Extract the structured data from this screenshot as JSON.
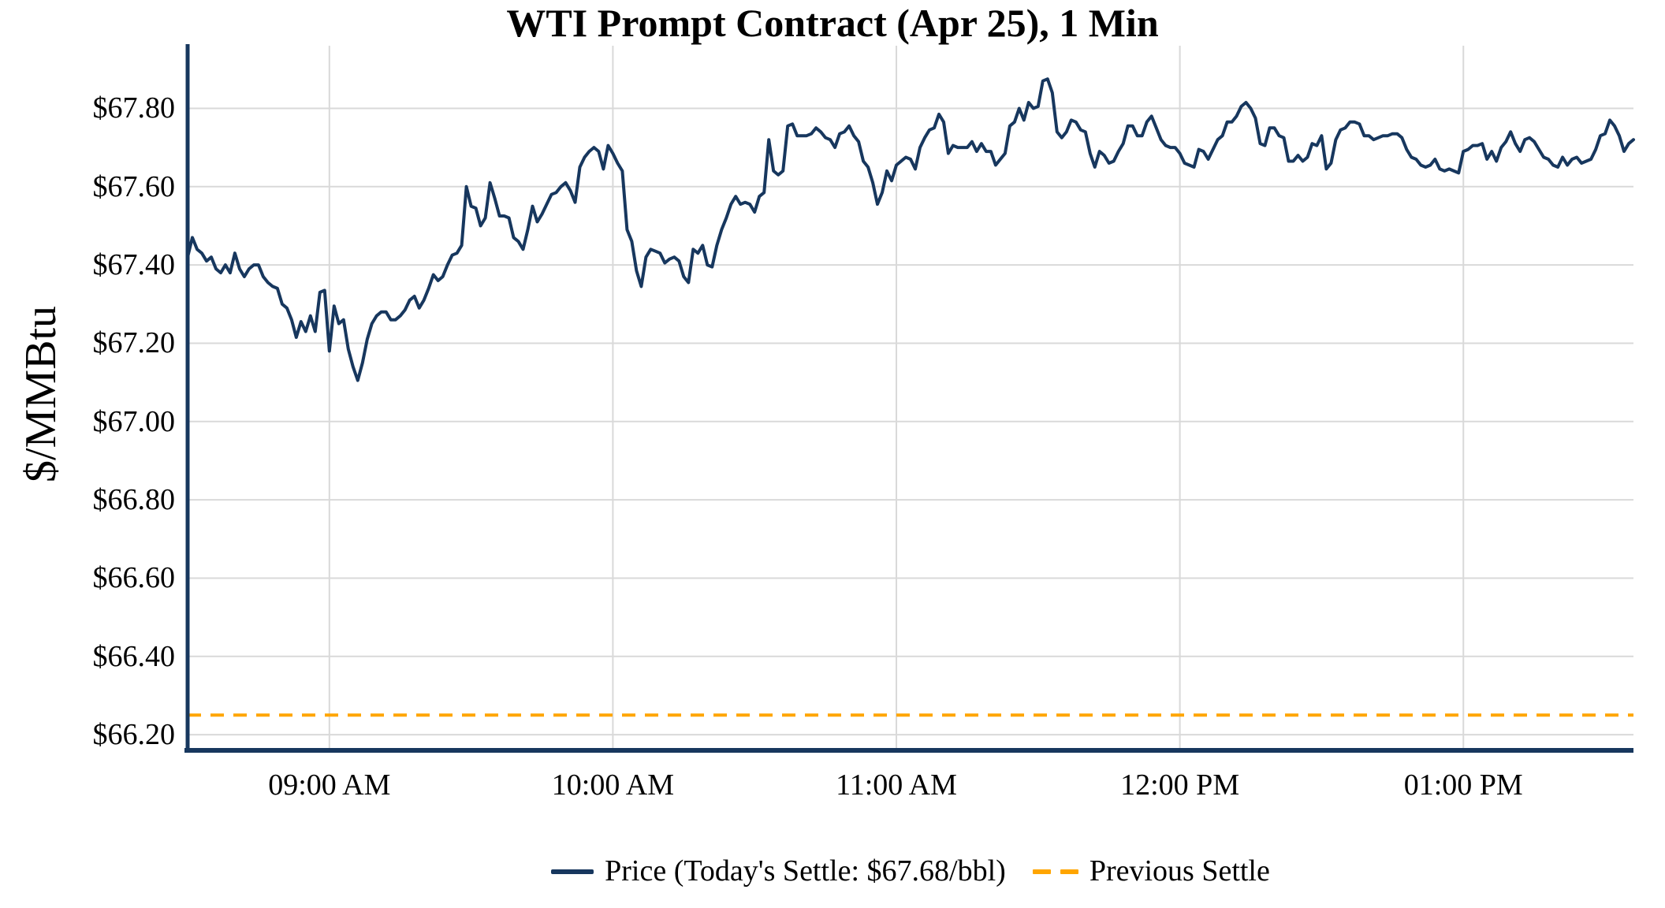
{
  "figure": {
    "title": "WTI Prompt Contract (Apr 25), 1 Min",
    "y_axis_label": "$/MMBtu"
  },
  "legend": {
    "price_label": "Price (Today's Settle: $67.68/bbl)",
    "previous_settle_label": "Previous Settle"
  },
  "colors": {
    "price_line": "#17375E",
    "previous_settle_line": "#FFA500",
    "gridline": "#D9D9D9",
    "axis_spine": "#17375E",
    "background": "#FFFFFF",
    "text": "#000000"
  },
  "chart_data": {
    "type": "line",
    "title": "WTI Prompt Contract (Apr 25), 1 Min",
    "xlabel": "",
    "ylabel": "$/MMBtu",
    "x_start_time": "08:30 AM",
    "x_end_time": "01:36 PM",
    "x_interval_minutes": 1,
    "x_total_minutes": 306,
    "ylim": [
      66.16,
      67.96
    ],
    "grid": true,
    "legend_position": "bottom",
    "today_settle": 67.68,
    "previous_settle": 66.25,
    "x_ticks": [
      {
        "minute": 30,
        "label": "09:00 AM"
      },
      {
        "minute": 90,
        "label": "10:00 AM"
      },
      {
        "minute": 150,
        "label": "11:00 AM"
      },
      {
        "minute": 210,
        "label": "12:00 PM"
      },
      {
        "minute": 270,
        "label": "01:00 PM"
      }
    ],
    "y_ticks": [
      {
        "value": 66.2,
        "label": "$66.20"
      },
      {
        "value": 66.4,
        "label": "$66.40"
      },
      {
        "value": 66.6,
        "label": "$66.60"
      },
      {
        "value": 66.8,
        "label": "$66.80"
      },
      {
        "value": 67.0,
        "label": "$67.00"
      },
      {
        "value": 67.2,
        "label": "$67.20"
      },
      {
        "value": 67.4,
        "label": "$67.40"
      },
      {
        "value": 67.6,
        "label": "$67.60"
      },
      {
        "value": 67.8,
        "label": "$67.80"
      }
    ],
    "series": [
      {
        "name": "Price (Today's Settle: $67.68/bbl)",
        "type": "line",
        "color": "#17375E",
        "stroke_width": 4,
        "values": [
          67.42,
          67.47,
          67.44,
          67.43,
          67.41,
          67.42,
          67.39,
          67.38,
          67.4,
          67.38,
          67.43,
          67.39,
          67.37,
          67.39,
          67.4,
          67.4,
          67.37,
          67.355,
          67.345,
          67.34,
          67.3,
          67.29,
          67.26,
          67.215,
          67.255,
          67.23,
          67.27,
          67.23,
          67.33,
          67.335,
          67.18,
          67.295,
          67.25,
          67.26,
          67.185,
          67.14,
          67.105,
          67.15,
          67.21,
          67.25,
          67.27,
          67.28,
          67.28,
          67.26,
          67.26,
          67.27,
          67.285,
          67.31,
          67.32,
          67.29,
          67.31,
          67.34,
          67.375,
          67.36,
          67.37,
          67.4,
          67.425,
          67.43,
          67.45,
          67.6,
          67.55,
          67.545,
          67.5,
          67.52,
          67.61,
          67.57,
          67.525,
          67.525,
          67.52,
          67.47,
          67.46,
          67.44,
          67.49,
          67.55,
          67.51,
          67.53,
          67.555,
          67.58,
          67.585,
          67.6,
          67.61,
          67.59,
          67.56,
          67.65,
          67.675,
          67.69,
          67.7,
          67.69,
          67.645,
          67.705,
          67.685,
          67.66,
          67.64,
          67.49,
          67.46,
          67.385,
          67.345,
          67.42,
          67.44,
          67.435,
          67.43,
          67.405,
          67.415,
          67.42,
          67.41,
          67.37,
          67.355,
          67.44,
          67.43,
          67.45,
          67.4,
          67.395,
          67.45,
          67.49,
          67.52,
          67.555,
          67.575,
          67.555,
          67.56,
          67.555,
          67.535,
          67.575,
          67.585,
          67.72,
          67.64,
          67.63,
          67.64,
          67.755,
          67.76,
          67.73,
          67.73,
          67.73,
          67.735,
          67.75,
          67.74,
          67.725,
          67.72,
          67.7,
          67.735,
          67.74,
          67.755,
          67.73,
          67.715,
          67.665,
          67.65,
          67.61,
          67.555,
          67.585,
          67.64,
          67.615,
          67.655,
          67.665,
          67.675,
          67.67,
          67.645,
          67.7,
          67.725,
          67.745,
          67.75,
          67.785,
          67.765,
          67.685,
          67.705,
          67.7,
          67.7,
          67.7,
          67.715,
          67.69,
          67.71,
          67.69,
          67.69,
          67.655,
          67.67,
          67.685,
          67.755,
          67.765,
          67.8,
          67.77,
          67.815,
          67.8,
          67.805,
          67.87,
          67.875,
          67.84,
          67.74,
          67.725,
          67.74,
          67.77,
          67.765,
          67.745,
          67.74,
          67.685,
          67.65,
          67.69,
          67.68,
          67.66,
          67.665,
          67.69,
          67.71,
          67.755,
          67.755,
          67.73,
          67.73,
          67.765,
          67.78,
          67.75,
          67.72,
          67.705,
          67.7,
          67.7,
          67.685,
          67.66,
          67.655,
          67.65,
          67.695,
          67.69,
          67.67,
          67.695,
          67.72,
          67.73,
          67.765,
          67.765,
          67.78,
          67.805,
          67.815,
          67.8,
          67.775,
          67.71,
          67.705,
          67.75,
          67.75,
          67.73,
          67.725,
          67.665,
          67.665,
          67.68,
          67.665,
          67.675,
          67.71,
          67.705,
          67.73,
          67.645,
          67.66,
          67.72,
          67.745,
          67.75,
          67.765,
          67.765,
          67.76,
          67.73,
          67.73,
          67.72,
          67.725,
          67.73,
          67.73,
          67.735,
          67.735,
          67.725,
          67.695,
          67.675,
          67.67,
          67.655,
          67.65,
          67.655,
          67.67,
          67.645,
          67.64,
          67.645,
          67.64,
          67.635,
          67.69,
          67.695,
          67.705,
          67.705,
          67.71,
          67.67,
          67.69,
          67.665,
          67.7,
          67.715,
          67.74,
          67.71,
          67.69,
          67.72,
          67.725,
          67.715,
          67.695,
          67.675,
          67.67,
          67.655,
          67.65,
          67.675,
          67.655,
          67.67,
          67.675,
          67.66,
          67.665,
          67.67,
          67.695,
          67.73,
          67.735,
          67.77,
          67.755,
          67.73,
          67.69,
          67.71,
          67.72
        ]
      },
      {
        "name": "Previous Settle",
        "type": "hline",
        "color": "#FFA500",
        "stroke_width": 4,
        "dash": [
          17,
          12
        ],
        "value": 66.25
      }
    ]
  }
}
